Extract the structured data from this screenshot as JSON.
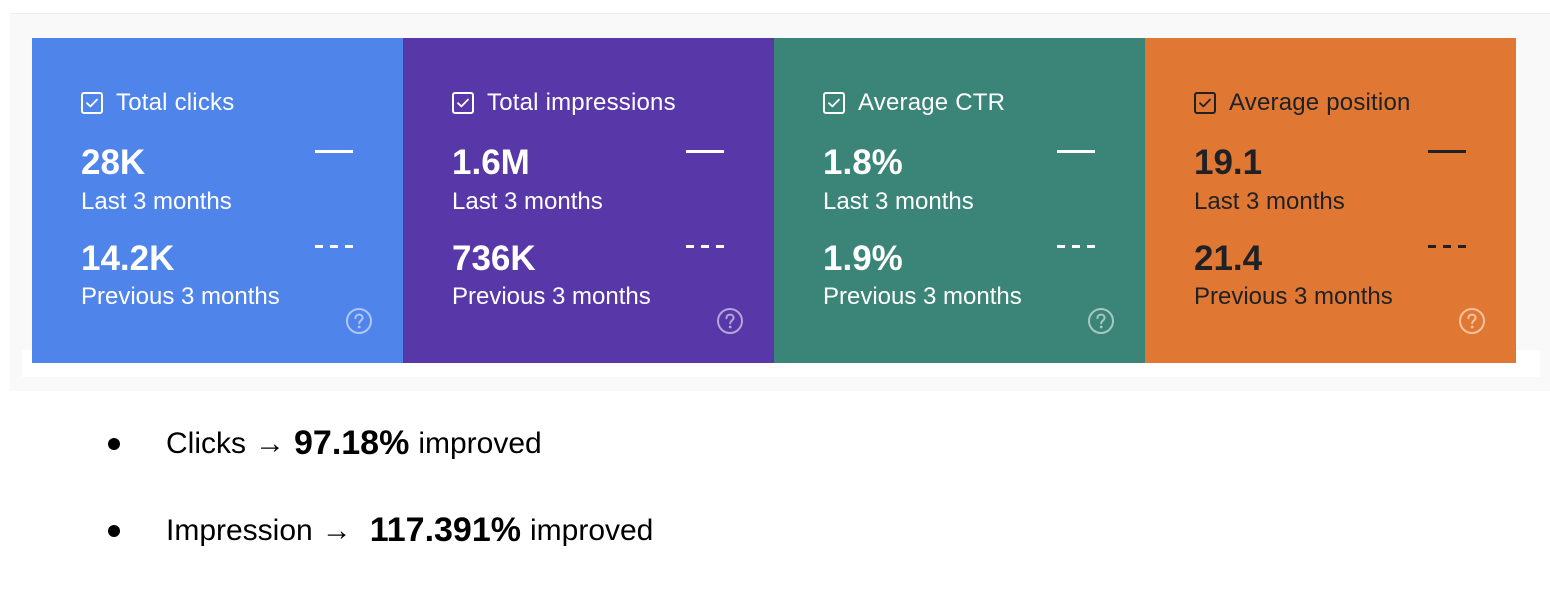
{
  "cards": [
    {
      "title": "Total clicks",
      "current_value": "28K",
      "current_period": "Last 3 months",
      "previous_value": "14.2K",
      "previous_period": "Previous 3 months",
      "color": "#4f84ea",
      "text_color": "#ffffff"
    },
    {
      "title": "Total impressions",
      "current_value": "1.6M",
      "current_period": "Last 3 months",
      "previous_value": "736K",
      "previous_period": "Previous 3 months",
      "color": "#5837a8",
      "text_color": "#ffffff"
    },
    {
      "title": "Average CTR",
      "current_value": "1.8%",
      "current_period": "Last 3 months",
      "previous_value": "1.9%",
      "previous_period": "Previous 3 months",
      "color": "#3a8577",
      "text_color": "#ffffff"
    },
    {
      "title": "Average position",
      "current_value": "19.1",
      "current_period": "Last 3 months",
      "previous_value": "21.4",
      "previous_period": "Previous 3 months",
      "color": "#e07833",
      "text_color": "#202124"
    }
  ],
  "bullets": [
    {
      "label": "Clicks",
      "arrow": "→",
      "value": "97.18%",
      "suffix": "improved"
    },
    {
      "label": "Impression",
      "arrow": "→",
      "value": "117.391%",
      "suffix": "improved"
    }
  ],
  "icons": {
    "checkbox": "checkbox-checked-icon",
    "help": "help-circle-icon",
    "legend_current": "solid-line-legend-icon",
    "legend_previous": "dashed-line-legend-icon"
  }
}
